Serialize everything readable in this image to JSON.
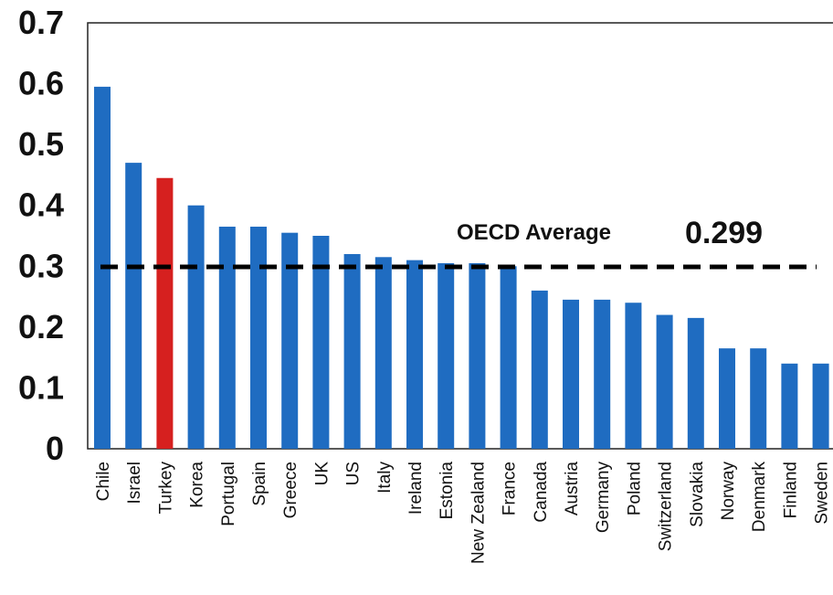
{
  "chart_data": {
    "type": "bar",
    "title": "",
    "xlabel": "",
    "ylabel": "",
    "ylim": [
      0,
      0.7
    ],
    "yticks": [
      "0",
      "0.1",
      "0.2",
      "0.3",
      "0.4",
      "0.5",
      "0.6",
      "0.7"
    ],
    "grid": false,
    "legend": "none",
    "categories": [
      "Chile",
      "Israel",
      "Turkey",
      "Korea",
      "Portugal",
      "Spain",
      "Greece",
      "UK",
      "US",
      "Italy",
      "Ireland",
      "Estonia",
      "New Zealand",
      "France",
      "Canada",
      "Austria",
      "Germany",
      "Poland",
      "Switzerland",
      "Slovakia",
      "Norway",
      "Denmark",
      "Finland",
      "Sweden"
    ],
    "values": [
      0.595,
      0.47,
      0.445,
      0.4,
      0.365,
      0.365,
      0.355,
      0.35,
      0.32,
      0.315,
      0.31,
      0.305,
      0.305,
      0.3,
      0.26,
      0.245,
      0.245,
      0.24,
      0.22,
      0.215,
      0.165,
      0.165,
      0.14,
      0.14
    ],
    "highlight_category": "Turkey",
    "colors": {
      "bar": "#1f6cc1",
      "highlight": "#d6201f",
      "reference_line": "#000000"
    },
    "reference_line": {
      "value": 0.299,
      "label": "OECD Average",
      "value_label": "0.299",
      "style": "dashed"
    }
  }
}
